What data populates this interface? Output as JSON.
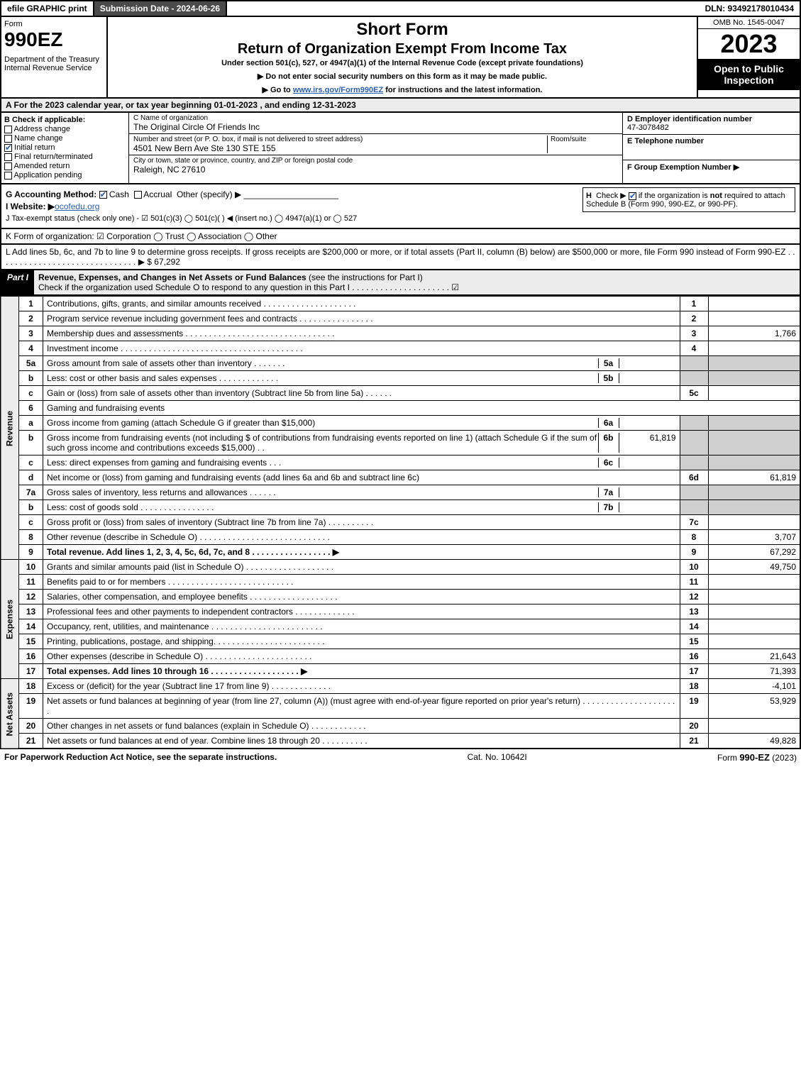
{
  "topbar": {
    "efile": "efile GRAPHIC print",
    "subdate_label": "Submission Date - 2024-06-26",
    "dln": "DLN: 93492178010434"
  },
  "header": {
    "form_word": "Form",
    "form_no": "990EZ",
    "dept": "Department of the Treasury\nInternal Revenue Service",
    "title1": "Short Form",
    "title2": "Return of Organization Exempt From Income Tax",
    "subtitle": "Under section 501(c), 527, or 4947(a)(1) of the Internal Revenue Code (except private foundations)",
    "arrow1": "▶ Do not enter social security numbers on this form as it may be made public.",
    "arrow2_pre": "▶ Go to ",
    "arrow2_link": "www.irs.gov/Form990EZ",
    "arrow2_post": " for instructions and the latest information.",
    "omb": "OMB No. 1545-0047",
    "year": "2023",
    "open_public": "Open to Public Inspection"
  },
  "lineA": "A  For the 2023 calendar year, or tax year beginning 01-01-2023 , and ending 12-31-2023",
  "colB": {
    "title": "B  Check if applicable:",
    "items": [
      "Address change",
      "Name change",
      "Initial return",
      "Final return/terminated",
      "Amended return",
      "Application pending"
    ],
    "checked_index": 2
  },
  "colC": {
    "name_label": "C Name of organization",
    "name": "The Original Circle Of Friends Inc",
    "addr_label": "Number and street (or P. O. box, if mail is not delivered to street address)",
    "room_label": "Room/suite",
    "addr": "4501 New Bern Ave Ste 130 STE 155",
    "city_label": "City or town, state or province, country, and ZIP or foreign postal code",
    "city": "Raleigh, NC  27610"
  },
  "colDEF": {
    "d_label": "D Employer identification number",
    "d_val": "47-3078482",
    "e_label": "E Telephone number",
    "f_label": "F Group Exemption Number  ▶"
  },
  "lineG_label": "G Accounting Method:",
  "lineG_opts": [
    "Cash",
    "Accrual",
    "Other (specify) ▶"
  ],
  "lineG_checked": 0,
  "lineH": "H  Check ▶     if the organization is not required to attach Schedule B (Form 990, 990-EZ, or 990-PF).",
  "lineI_label": "I Website: ▶",
  "lineI_val": "ocofedu.org",
  "lineJ": "J Tax-exempt status (check only one) - ☑ 501(c)(3)  ◯ 501(c)(  ) ◀ (insert no.)  ◯ 4947(a)(1) or  ◯ 527",
  "lineK": "K Form of organization:  ☑ Corporation  ◯ Trust  ◯ Association  ◯ Other",
  "lineL": "L Add lines 5b, 6c, and 7b to line 9 to determine gross receipts. If gross receipts are $200,000 or more, or if total assets (Part II, column (B) below) are $500,000 or more, file Form 990 instead of Form 990-EZ . . . . . . . . . . . . . . . . . . . . . . . . . . . . . .  ▶ $ 67,292",
  "part1": {
    "label": "Part I",
    "title": "Revenue, Expenses, and Changes in Net Assets or Fund Balances",
    "title_note": " (see the instructions for Part I)",
    "check_line": "Check if the organization used Schedule O to respond to any question in this Part I . . . . . . . . . . . . . . . . . . . . . ☑"
  },
  "sections": {
    "revenue_label": "Revenue",
    "expenses_label": "Expenses",
    "net_label": "Net Assets"
  },
  "rows": [
    {
      "n": "1",
      "desc": "Contributions, gifts, grants, and similar amounts received . . . . . . . . . . . . . . . . . . . .",
      "box": "1",
      "amt": ""
    },
    {
      "n": "2",
      "desc": "Program service revenue including government fees and contracts . . . . . . . . . . . . . . . .",
      "box": "2",
      "amt": ""
    },
    {
      "n": "3",
      "desc": "Membership dues and assessments . . . . . . . . . . . . . . . . . . . . . . . . . . . . . . . .",
      "box": "3",
      "amt": "1,766"
    },
    {
      "n": "4",
      "desc": "Investment income . . . . . . . . . . . . . . . . . . . . . . . . . . . . . . . . . . . . . . .",
      "box": "4",
      "amt": ""
    },
    {
      "n": "5a",
      "desc": "Gross amount from sale of assets other than inventory . . . . . . .",
      "sub": "5a",
      "subamt": ""
    },
    {
      "n": "b",
      "desc": "Less: cost or other basis and sales expenses . . . . . . . . . . . . .",
      "sub": "5b",
      "subamt": ""
    },
    {
      "n": "c",
      "desc": "Gain or (loss) from sale of assets other than inventory (Subtract line 5b from line 5a) . . . . . .",
      "box": "5c",
      "amt": ""
    },
    {
      "n": "6",
      "desc": "Gaming and fundraising events"
    },
    {
      "n": "a",
      "desc": "Gross income from gaming (attach Schedule G if greater than $15,000)",
      "sub": "6a",
      "subamt": ""
    },
    {
      "n": "b",
      "desc": "Gross income from fundraising events (not including $                     of contributions from fundraising events reported on line 1) (attach Schedule G if the sum of such gross income and contributions exceeds $15,000)   .  .",
      "sub": "6b",
      "subamt": "61,819"
    },
    {
      "n": "c",
      "desc": "Less: direct expenses from gaming and fundraising events   .  .  .",
      "sub": "6c",
      "subamt": ""
    },
    {
      "n": "d",
      "desc": "Net income or (loss) from gaming and fundraising events (add lines 6a and 6b and subtract line 6c)",
      "box": "6d",
      "amt": "61,819"
    },
    {
      "n": "7a",
      "desc": "Gross sales of inventory, less returns and allowances . . . . . .",
      "sub": "7a",
      "subamt": ""
    },
    {
      "n": "b",
      "desc": "Less: cost of goods sold       . . . . . . . . . . . . . . . .",
      "sub": "7b",
      "subamt": ""
    },
    {
      "n": "c",
      "desc": "Gross profit or (loss) from sales of inventory (Subtract line 7b from line 7a) . . . . . . . . . .",
      "box": "7c",
      "amt": ""
    },
    {
      "n": "8",
      "desc": "Other revenue (describe in Schedule O) . . . . . . . . . . . . . . . . . . . . . . . . . . . .",
      "box": "8",
      "amt": "3,707"
    },
    {
      "n": "9",
      "desc": "Total revenue. Add lines 1, 2, 3, 4, 5c, 6d, 7c, and 8  . . . . . . . . . . . . . . . . .  ▶",
      "box": "9",
      "amt": "67,292",
      "bold": true
    }
  ],
  "exp_rows": [
    {
      "n": "10",
      "desc": "Grants and similar amounts paid (list in Schedule O) . . . . . . . . . . . . . . . . . . .",
      "box": "10",
      "amt": "49,750"
    },
    {
      "n": "11",
      "desc": "Benefits paid to or for members     . . . . . . . . . . . . . . . . . . . . . . . . . . .",
      "box": "11",
      "amt": ""
    },
    {
      "n": "12",
      "desc": "Salaries, other compensation, and employee benefits . . . . . . . . . . . . . . . . . . .",
      "box": "12",
      "amt": ""
    },
    {
      "n": "13",
      "desc": "Professional fees and other payments to independent contractors . . . . . . . . . . . . .",
      "box": "13",
      "amt": ""
    },
    {
      "n": "14",
      "desc": "Occupancy, rent, utilities, and maintenance . . . . . . . . . . . . . . . . . . . . . . . .",
      "box": "14",
      "amt": ""
    },
    {
      "n": "15",
      "desc": "Printing, publications, postage, and shipping. . . . . . . . . . . . . . . . . . . . . . . .",
      "box": "15",
      "amt": ""
    },
    {
      "n": "16",
      "desc": "Other expenses (describe in Schedule O)    . . . . . . . . . . . . . . . . . . . . . . .",
      "box": "16",
      "amt": "21,643"
    },
    {
      "n": "17",
      "desc": "Total expenses. Add lines 10 through 16    . . . . . . . . . . . . . . . . . . .  ▶",
      "box": "17",
      "amt": "71,393",
      "bold": true
    }
  ],
  "net_rows": [
    {
      "n": "18",
      "desc": "Excess or (deficit) for the year (Subtract line 17 from line 9)       . . . . . . . . . . . . .",
      "box": "18",
      "amt": "-4,101"
    },
    {
      "n": "19",
      "desc": "Net assets or fund balances at beginning of year (from line 27, column (A)) (must agree with end-of-year figure reported on prior year's return) . . . . . . . . . . . . . . . . . . . . .",
      "box": "19",
      "amt": "53,929"
    },
    {
      "n": "20",
      "desc": "Other changes in net assets or fund balances (explain in Schedule O) . . . . . . . . . . . .",
      "box": "20",
      "amt": ""
    },
    {
      "n": "21",
      "desc": "Net assets or fund balances at end of year. Combine lines 18 through 20 . . . . . . . . . .",
      "box": "21",
      "amt": "49,828"
    }
  ],
  "footer": {
    "left": "For Paperwork Reduction Act Notice, see the separate instructions.",
    "mid": "Cat. No. 10642I",
    "right_pre": "Form ",
    "right_form": "990-EZ",
    "right_post": " (2023)"
  }
}
